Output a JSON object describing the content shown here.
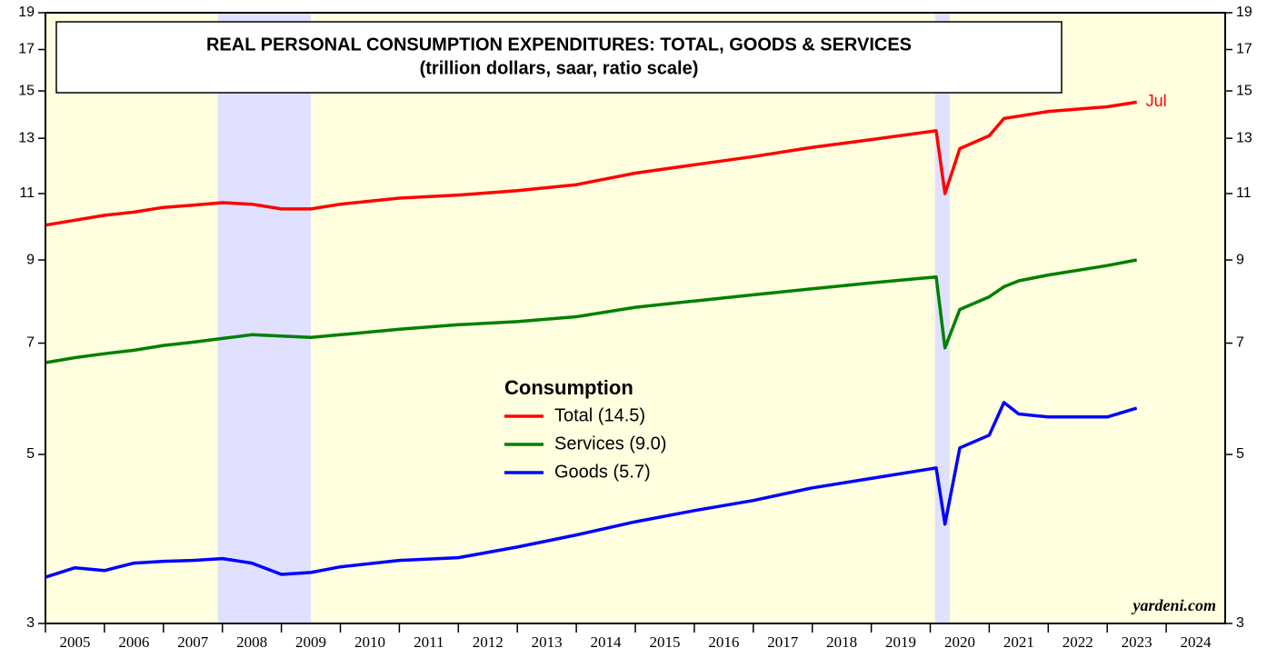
{
  "chart_data": {
    "type": "line",
    "title": "REAL PERSONAL CONSUMPTION EXPENDITURES: TOTAL, GOODS & SERVICES",
    "subtitle": "(trillion dollars, saar, ratio scale)",
    "legend_title": "Consumption",
    "annotation": "Jul",
    "credit": "yardeni.com",
    "log_scale": true,
    "x": [
      2005,
      2005.5,
      2006,
      2006.5,
      2007,
      2007.5,
      2008,
      2008.5,
      2009,
      2009.5,
      2010,
      2011,
      2012,
      2013,
      2014,
      2015,
      2016,
      2017,
      2018,
      2019,
      2020.1,
      2020.25,
      2020.5,
      2021,
      2021.25,
      2021.5,
      2022,
      2023,
      2023.5
    ],
    "series": [
      {
        "name": "Total (14.5)",
        "color": "#ff0000",
        "values": [
          10.0,
          10.15,
          10.3,
          10.4,
          10.55,
          10.62,
          10.7,
          10.65,
          10.5,
          10.5,
          10.65,
          10.85,
          10.95,
          11.1,
          11.3,
          11.7,
          12.0,
          12.3,
          12.65,
          12.95,
          13.3,
          11.0,
          12.6,
          13.1,
          13.8,
          13.9,
          14.1,
          14.3,
          14.5
        ]
      },
      {
        "name": "Services (9.0)",
        "color": "#008000",
        "values": [
          6.6,
          6.7,
          6.78,
          6.85,
          6.95,
          7.02,
          7.1,
          7.18,
          7.15,
          7.12,
          7.18,
          7.3,
          7.4,
          7.47,
          7.58,
          7.8,
          7.95,
          8.1,
          8.25,
          8.4,
          8.55,
          6.9,
          7.75,
          8.05,
          8.3,
          8.45,
          8.6,
          8.85,
          9.0
        ]
      },
      {
        "name": "Goods (5.7)",
        "color": "#0000ff",
        "values": [
          3.45,
          3.55,
          3.52,
          3.6,
          3.62,
          3.63,
          3.65,
          3.6,
          3.48,
          3.5,
          3.56,
          3.63,
          3.66,
          3.78,
          3.92,
          4.08,
          4.22,
          4.35,
          4.52,
          4.65,
          4.8,
          4.05,
          5.1,
          5.3,
          5.85,
          5.65,
          5.6,
          5.6,
          5.75
        ]
      }
    ],
    "recessions": [
      [
        2007.92,
        2009.5
      ],
      [
        2020.08,
        2020.33
      ]
    ],
    "year_labels": [
      2005,
      2006,
      2007,
      2008,
      2009,
      2010,
      2011,
      2012,
      2013,
      2014,
      2015,
      2016,
      2017,
      2018,
      2019,
      2020,
      2021,
      2022,
      2023,
      2024
    ],
    "xlim": [
      2005,
      2025
    ],
    "ylim": [
      3,
      19
    ],
    "yticks": [
      3,
      5,
      7,
      9,
      11,
      13,
      15,
      17,
      19
    ]
  }
}
